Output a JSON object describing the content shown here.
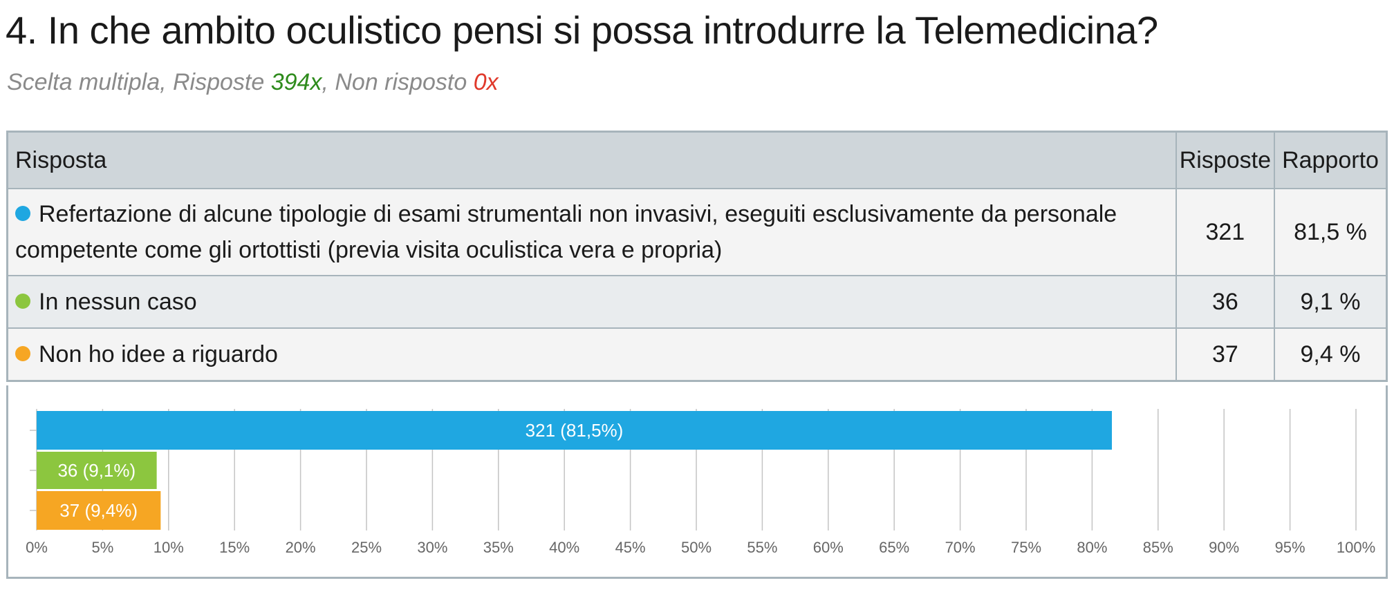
{
  "question": {
    "title": "4. In che ambito oculistico pensi si possa introdurre la Telemedicina?",
    "type_label": "Scelta multipla, Risposte ",
    "answered_count": "394x",
    "separator": ", Non risposto ",
    "unanswered_count": "0x"
  },
  "table": {
    "headers": {
      "answer": "Risposta",
      "count": "Risposte",
      "ratio": "Rapporto"
    },
    "rows": [
      {
        "label": "Refertazione di alcune tipologie di esami strumentali non invasivi, eseguiti esclusivamente da personale competente come gli ortottisti (previa visita oculistica vera e propria)",
        "count": "321",
        "ratio": "81,5 %",
        "color": "#1fa7e1"
      },
      {
        "label": "In nessun caso",
        "count": "36",
        "ratio": "9,1 %",
        "color": "#8cc63f"
      },
      {
        "label": "Non ho idee a riguardo",
        "count": "37",
        "ratio": "9,4 %",
        "color": "#f6a623"
      }
    ]
  },
  "chart_data": {
    "type": "bar",
    "orientation": "horizontal",
    "categories": [
      "Refertazione di alcune tipologie di esami strumentali non invasivi, eseguiti esclusivamente da personale competente come gli ortottisti (previa visita oculistica vera e propria)",
      "In nessun caso",
      "Non ho idee a riguardo"
    ],
    "values": [
      81.5,
      9.1,
      9.4
    ],
    "bar_labels": [
      "321 (81,5%)",
      "36 (9,1%)",
      "37 (9,4%)"
    ],
    "colors": [
      "#1fa7e1",
      "#8cc63f",
      "#f6a623"
    ],
    "xlim": [
      0,
      100
    ],
    "xticks": [
      "0%",
      "5%",
      "10%",
      "15%",
      "20%",
      "25%",
      "30%",
      "35%",
      "40%",
      "45%",
      "50%",
      "55%",
      "60%",
      "65%",
      "70%",
      "75%",
      "80%",
      "85%",
      "90%",
      "95%",
      "100%"
    ],
    "grid": true
  }
}
